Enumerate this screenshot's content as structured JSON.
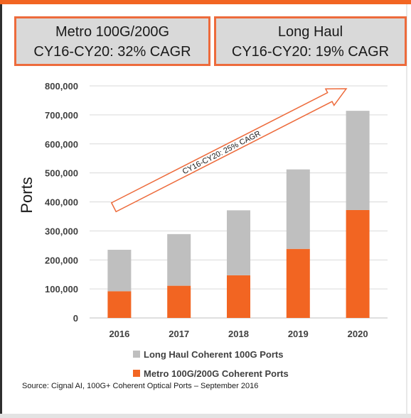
{
  "callouts": {
    "metro": {
      "line1": "Metro 100G/200G",
      "line2": "CY16-CY20: 32% CAGR"
    },
    "long_haul": {
      "line1": "Long Haul",
      "line2": "CY16-CY20: 19% CAGR"
    }
  },
  "source": "Source: Cignal AI, 100G+ Coherent Optical Ports – September 2016",
  "colors": {
    "long_haul": "#bfbfbf",
    "metro": "#f26522",
    "arrow": "#ed6b3c",
    "accent": "#f26522"
  },
  "chart_data": {
    "type": "bar",
    "stacked": true,
    "categories": [
      "2016",
      "2017",
      "2018",
      "2019",
      "2020"
    ],
    "series": [
      {
        "name": "Metro 100G/200G Coherent Ports",
        "values": [
          92000,
          111000,
          147000,
          238000,
          372000
        ]
      },
      {
        "name": "Long Haul Coherent 100G Ports",
        "values": [
          143000,
          178000,
          224000,
          274000,
          342000
        ]
      }
    ],
    "ylabel": "Ports",
    "xlabel": "",
    "ylim": [
      0,
      800000
    ],
    "yticks": [
      0,
      100000,
      200000,
      300000,
      400000,
      500000,
      600000,
      700000,
      800000
    ],
    "ytick_labels": [
      "0",
      "100,000",
      "200,000",
      "300,000",
      "400,000",
      "500,000",
      "600,000",
      "700,000",
      "800,000"
    ],
    "annotation": "CY16-CY20: 25% CAGR",
    "grid": true,
    "legend_placement": "bottom",
    "legend": [
      "Long Haul Coherent 100G Ports",
      "Metro 100G/200G Coherent Ports"
    ]
  }
}
